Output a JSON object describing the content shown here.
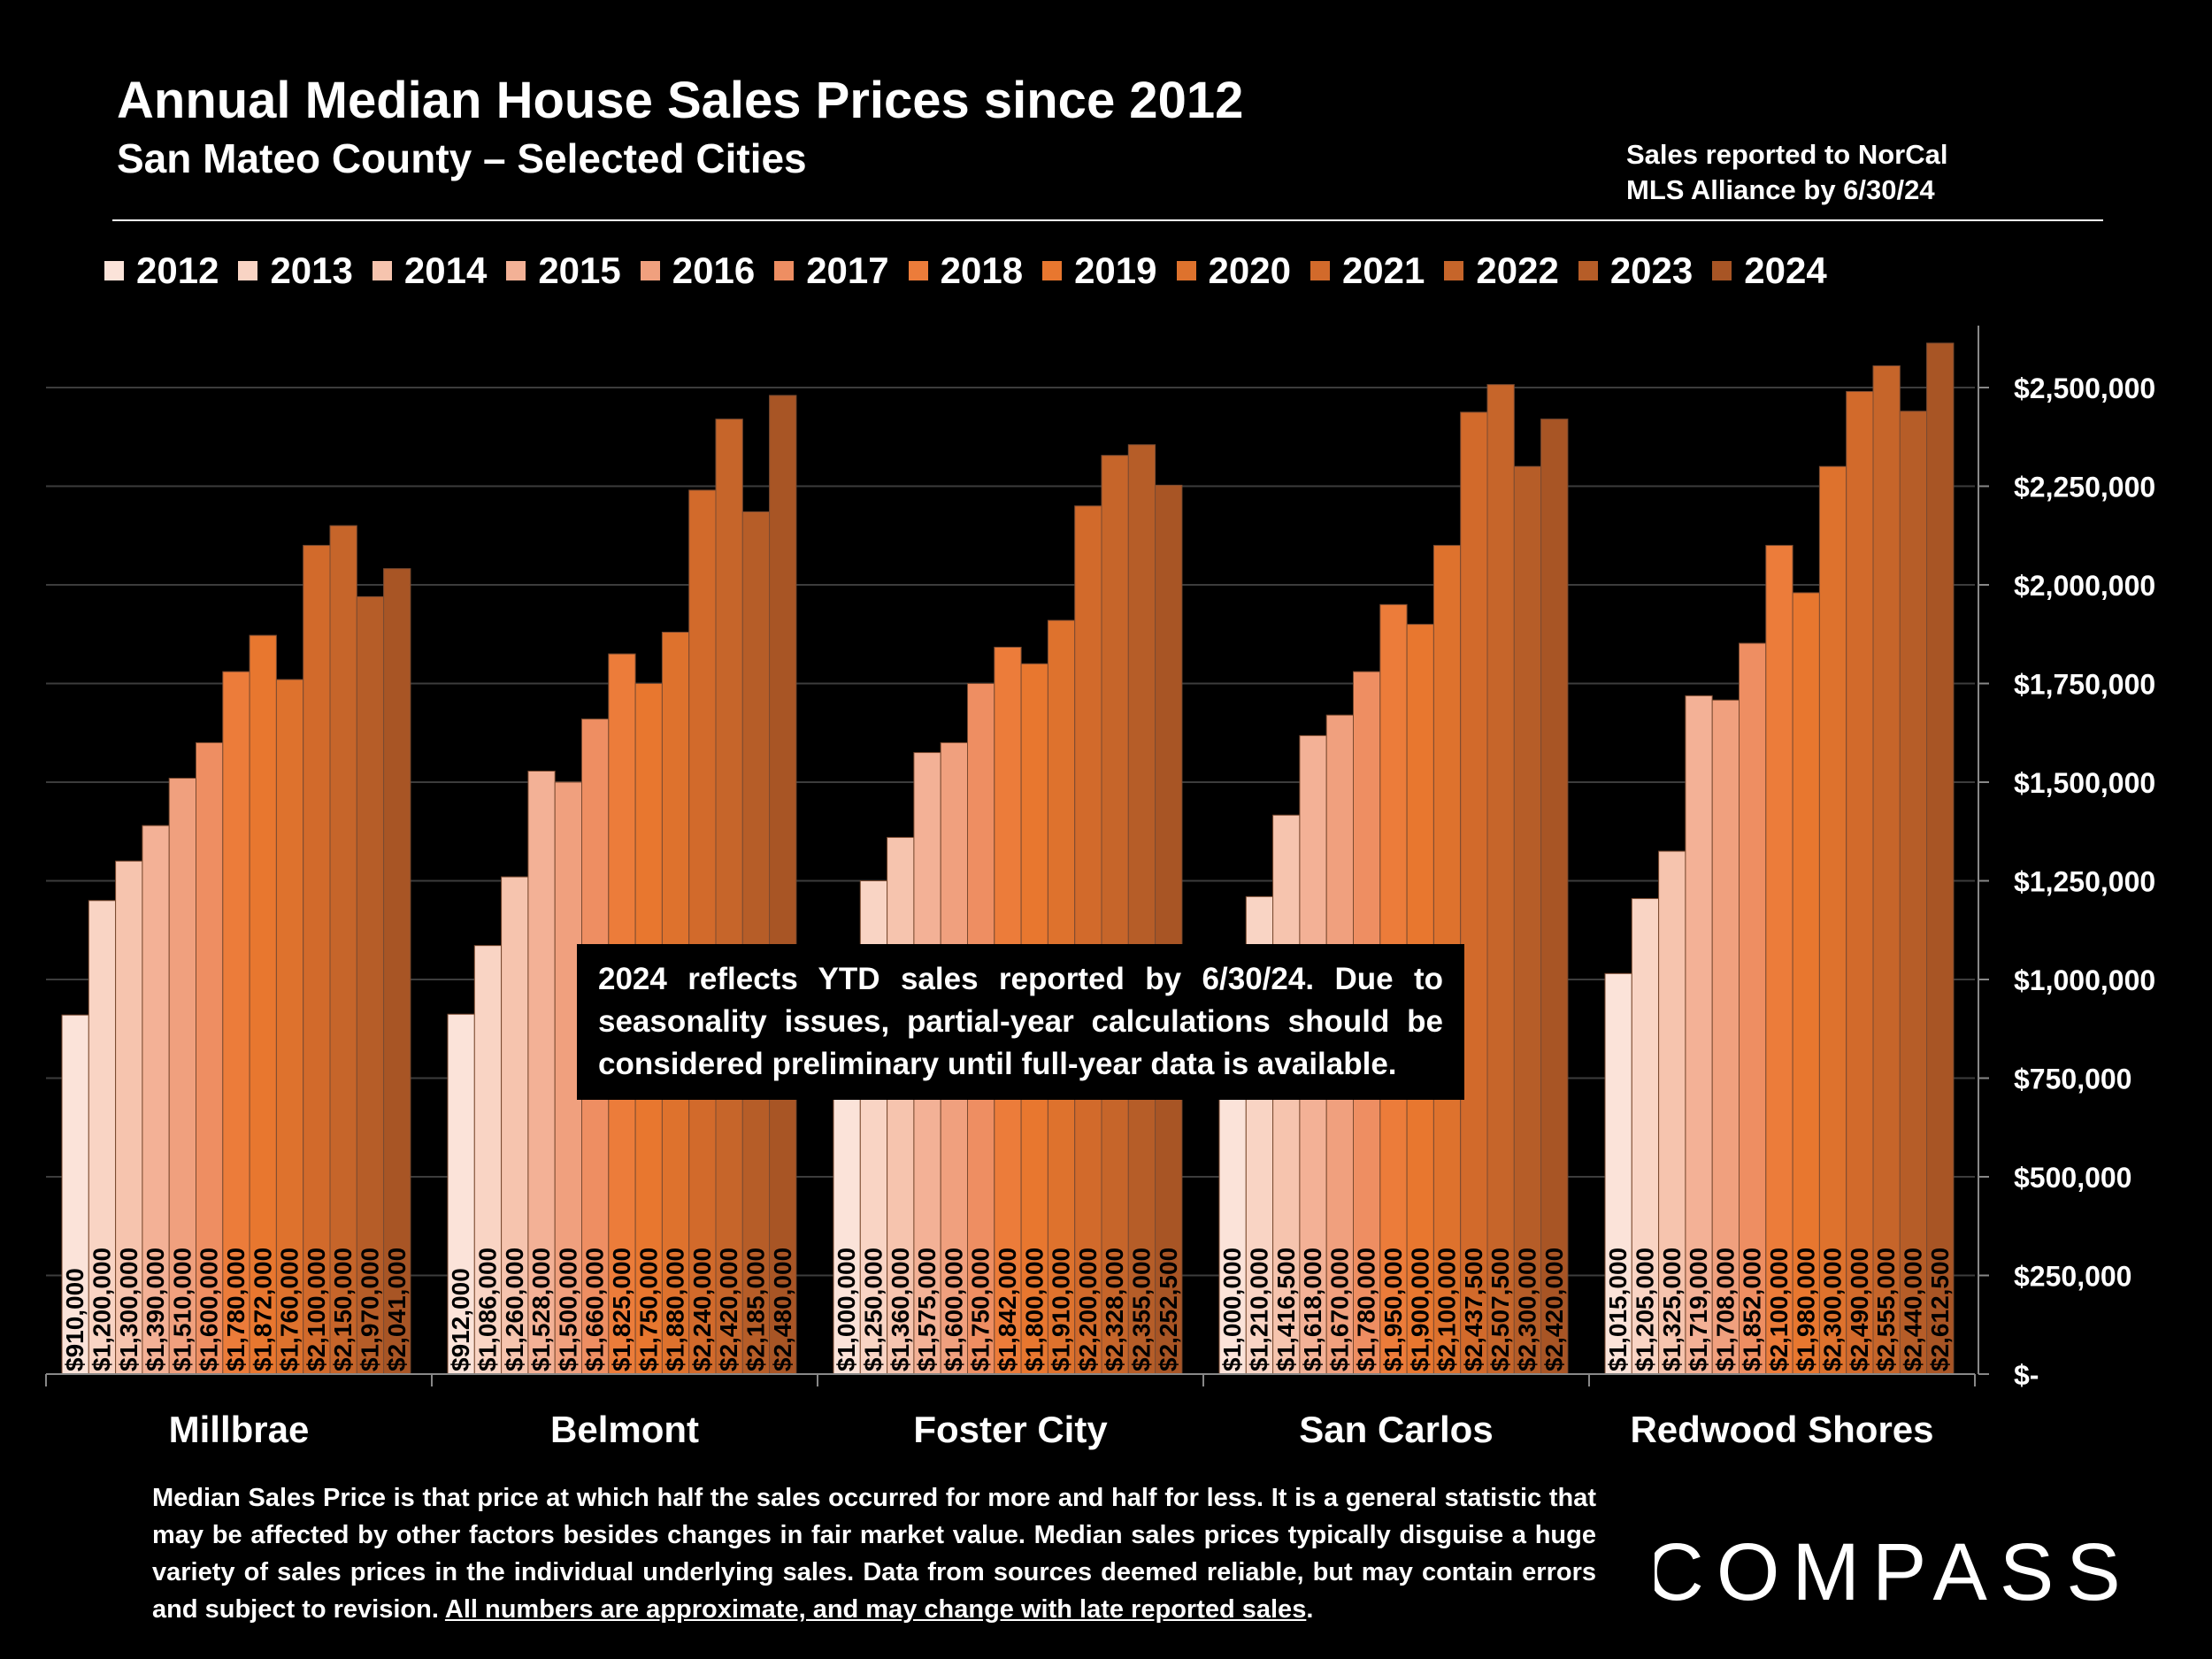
{
  "header": {
    "title": "Annual Median House Sales Prices since 2012",
    "subtitle": "San Mateo County – Selected Cities",
    "source_line1": "Sales reported to NorCal",
    "source_line2": "MLS Alliance by 6/30/24"
  },
  "annotation": "2024 reflects YTD sales reported by 6/30/24. Due to seasonality issues, partial-year calculations should be considered preliminary until full-year data is available.",
  "footnote": {
    "text": "Median Sales Price is that price at which half the sales occurred for more and half for less. It is a general statistic that may be affected by other factors besides changes in fair market value. Median sales prices typically disguise a huge variety of sales prices in the individual underlying sales. Data from sources deemed reliable, but may contain errors and subject to revision. ",
    "underlined": "All numbers are approximate, and may change with late reported sales",
    "end": "."
  },
  "logo": {
    "text": "COMPASS",
    "icon": "compass-logo"
  },
  "colors": {
    "background": "#000000",
    "years": [
      "#fbe3d9",
      "#f9d4c4",
      "#f6c4ae",
      "#f3b196",
      "#f0a07e",
      "#ee8e62",
      "#ec7c3a",
      "#e8772f",
      "#de722d",
      "#d26a2b",
      "#c6652a",
      "#b65d28",
      "#a85525"
    ]
  },
  "chart_data": {
    "type": "bar",
    "categories": [
      "Millbrae",
      "Belmont",
      "Foster City",
      "San Carlos",
      "Redwood Shores"
    ],
    "ylim": [
      0,
      2650000
    ],
    "yticks": [
      0,
      250000,
      500000,
      750000,
      1000000,
      1250000,
      1500000,
      1750000,
      2000000,
      2250000,
      2500000
    ],
    "ytick_labels": [
      "$-",
      "$250,000",
      "$500,000",
      "$750,000",
      "$1,000,000",
      "$1,250,000",
      "$1,500,000",
      "$1,750,000",
      "$2,000,000",
      "$2,250,000",
      "$2,500,000"
    ],
    "grid": true,
    "legend_position": "top",
    "series": [
      {
        "name": "2012",
        "values": [
          910000,
          912000,
          1000000,
          1000000,
          1015000
        ],
        "labels": [
          "$910,000",
          "$912,000",
          "$1,000,000",
          "$1,000,000",
          "$1,015,000"
        ]
      },
      {
        "name": "2013",
        "values": [
          1200000,
          1086000,
          1250000,
          1210000,
          1205000
        ],
        "labels": [
          "$1,200,000",
          "$1,086,000",
          "$1,250,000",
          "$1,210,000",
          "$1,205,000"
        ]
      },
      {
        "name": "2014",
        "values": [
          1300000,
          1260000,
          1360000,
          1416500,
          1325000
        ],
        "labels": [
          "$1,300,000",
          "$1,260,000",
          "$1,360,000",
          "$1,416,500",
          "$1,325,000"
        ]
      },
      {
        "name": "2015",
        "values": [
          1390000,
          1528000,
          1575000,
          1618000,
          1719000
        ],
        "labels": [
          "$1,390,000",
          "$1,528,000",
          "$1,575,000",
          "$1,618,000",
          "$1,719,000"
        ]
      },
      {
        "name": "2016",
        "values": [
          1510000,
          1500000,
          1600000,
          1670000,
          1708000
        ],
        "labels": [
          "$1,510,000",
          "$1,500,000",
          "$1,600,000",
          "$1,670,000",
          "$1,708,000"
        ]
      },
      {
        "name": "2017",
        "values": [
          1600000,
          1660000,
          1750000,
          1780000,
          1852000
        ],
        "labels": [
          "$1,600,000",
          "$1,660,000",
          "$1,750,000",
          "$1,780,000",
          "$1,852,000"
        ]
      },
      {
        "name": "2018",
        "values": [
          1780000,
          1825000,
          1842000,
          1950000,
          2100000
        ],
        "labels": [
          "$1,780,000",
          "$1,825,000",
          "$1,842,000",
          "$1,950,000",
          "$2,100,000"
        ]
      },
      {
        "name": "2019",
        "values": [
          1872000,
          1750000,
          1800000,
          1900000,
          1980000
        ],
        "labels": [
          "$1,872,000",
          "$1,750,000",
          "$1,800,000",
          "$1,900,000",
          "$1,980,000"
        ]
      },
      {
        "name": "2020",
        "values": [
          1760000,
          1880000,
          1910000,
          2100000,
          2300000
        ],
        "labels": [
          "$1,760,000",
          "$1,880,000",
          "$1,910,000",
          "$2,100,000",
          "$2,300,000"
        ]
      },
      {
        "name": "2021",
        "values": [
          2100000,
          2240000,
          2200000,
          2437500,
          2490000
        ],
        "labels": [
          "$2,100,000",
          "$2,240,000",
          "$2,200,000",
          "$2,437,500",
          "$2,490,000"
        ]
      },
      {
        "name": "2022",
        "values": [
          2150000,
          2420000,
          2328000,
          2507500,
          2555000
        ],
        "labels": [
          "$2,150,000",
          "$2,420,000",
          "$2,328,000",
          "$2,507,500",
          "$2,555,000"
        ]
      },
      {
        "name": "2023",
        "values": [
          1970000,
          2185000,
          2355000,
          2300000,
          2440000
        ],
        "labels": [
          "$1,970,000",
          "$2,185,000",
          "$2,355,000",
          "$2,300,000",
          "$2,440,000"
        ]
      },
      {
        "name": "2024",
        "values": [
          2041000,
          2480000,
          2252500,
          2420000,
          2612500
        ],
        "labels": [
          "$2,041,000",
          "$2,480,000",
          "$2,252,500",
          "$2,420,000",
          "$2,612,500"
        ]
      }
    ]
  }
}
